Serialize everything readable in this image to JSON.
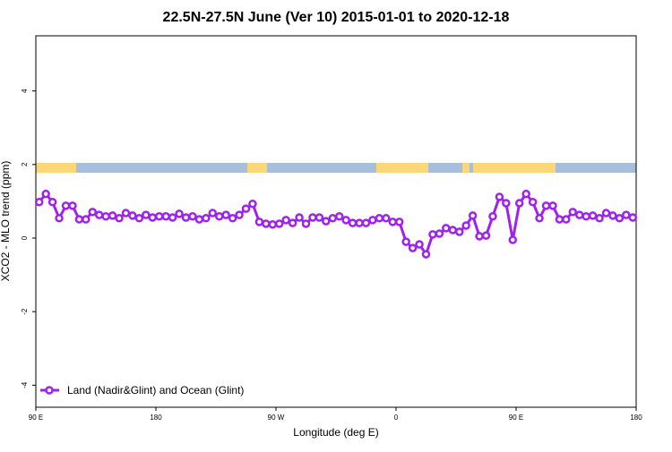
{
  "chart_data": {
    "type": "line",
    "title": "22.5N-27.5N June (Ver 10)   2015-01-01 to 2020-12-18",
    "x_label": "Longitude (deg E)",
    "y_label": "XCO2 - MLO trend (ppm)",
    "x": [
      -267.5,
      -262.5,
      -257.5,
      -252.5,
      -247.5,
      -242.5,
      -237.5,
      -232.5,
      -227.5,
      -222.5,
      -217.5,
      -212.5,
      -207.5,
      -202.5,
      -197.5,
      -192.5,
      -187.5,
      -182.5,
      -177.5,
      -172.5,
      -167.5,
      -162.5,
      -157.5,
      -152.5,
      -147.5,
      -142.5,
      -137.5,
      -132.5,
      -127.5,
      -122.5,
      -117.5,
      -112.5,
      -107.5,
      -102.5,
      -97.5,
      -92.5,
      -87.5,
      -82.5,
      -77.5,
      -72.5,
      -67.5,
      -62.5,
      -57.5,
      -52.5,
      -47.5,
      -42.5,
      -37.5,
      -32.5,
      -27.5,
      -22.5,
      -17.5,
      -12.5,
      -7.5,
      -2.5,
      2.5,
      7.5,
      12.5,
      17.5,
      22.5,
      27.5,
      32.5,
      37.5,
      42.5,
      47.5,
      52.5,
      57.5,
      62.5,
      67.5,
      72.5,
      77.5,
      82.5,
      87.5,
      92.5,
      97.5,
      102.5,
      107.5,
      112.5,
      117.5,
      122.5,
      127.5,
      132.5,
      137.5,
      142.5,
      147.5,
      152.5,
      157.5,
      162.5,
      167.5,
      172.5,
      177.5
    ],
    "series": [
      {
        "name": "Land (Nadir&Glint) and Ocean (Glint)",
        "color": "#a020f0",
        "values": [
          0.98,
          1.2,
          0.98,
          0.54,
          0.88,
          0.88,
          0.51,
          0.51,
          0.71,
          0.63,
          0.59,
          0.61,
          0.54,
          0.68,
          0.61,
          0.54,
          0.63,
          0.56,
          0.59,
          0.59,
          0.56,
          0.66,
          0.56,
          0.59,
          0.51,
          0.54,
          0.68,
          0.59,
          0.63,
          0.54,
          0.63,
          0.8,
          0.93,
          0.44,
          0.39,
          0.37,
          0.39,
          0.49,
          0.41,
          0.56,
          0.39,
          0.56,
          0.56,
          0.46,
          0.54,
          0.59,
          0.49,
          0.41,
          0.41,
          0.41,
          0.49,
          0.54,
          0.54,
          0.44,
          0.44,
          -0.1,
          -0.27,
          -0.17,
          -0.44,
          0.1,
          0.12,
          0.27,
          0.22,
          0.17,
          0.34,
          0.61,
          0.05,
          0.07,
          0.59,
          1.12,
          0.95,
          -0.05,
          0.95,
          1.2,
          0.98,
          0.54,
          0.88,
          0.88,
          0.51,
          0.51,
          0.71,
          0.63,
          0.59,
          0.61,
          0.54,
          0.68,
          0.61,
          0.54,
          0.63,
          0.56
        ]
      }
    ],
    "xlim": [
      -270,
      180
    ],
    "xticks": [
      {
        "value": -270,
        "label": "90 E"
      },
      {
        "value": -180,
        "label": "180"
      },
      {
        "value": -90,
        "label": "90 W"
      },
      0,
      {
        "value": 90,
        "label": "90 E"
      },
      180
    ],
    "ylim": [
      -4.6,
      5.5
    ],
    "yticks": [
      -4,
      -2,
      0,
      2,
      4
    ],
    "legend": "bottom-left"
  }
}
